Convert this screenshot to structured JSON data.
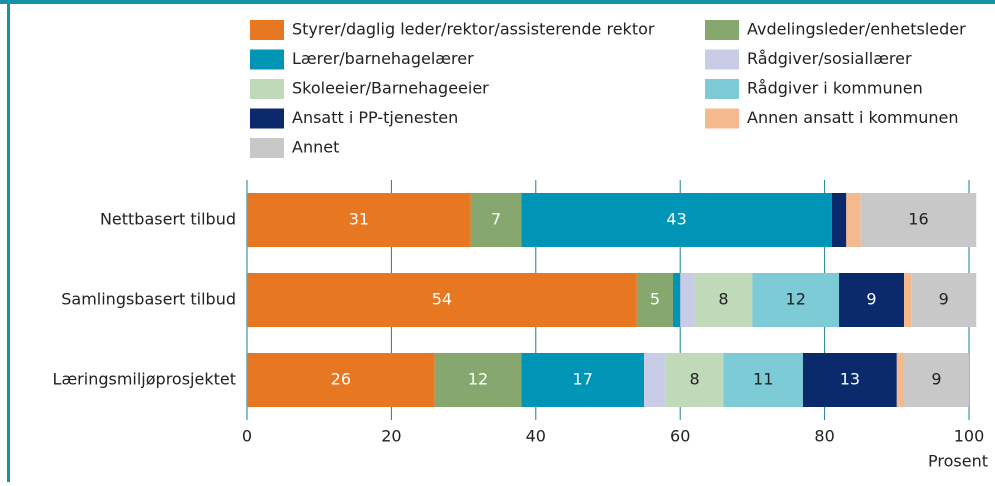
{
  "chart_data": {
    "type": "bar",
    "orientation": "horizontal",
    "stacked": true,
    "xlabel": "Prosent",
    "categories": [
      "Nettbasert tilbud",
      "Samlingsbasert tilbud",
      "Læringsmiljøprosjektet"
    ],
    "series": [
      {
        "name": "Styrer/daglig leder/rektor/assisterende rektor",
        "color": "#e87722",
        "values": [
          31,
          54,
          26
        ]
      },
      {
        "name": "Avdelingsleder/enhetsleder",
        "color": "#86a86e",
        "values": [
          7,
          5,
          12
        ]
      },
      {
        "name": "Lærer/barnehagelærer",
        "color": "#0095b6",
        "values": [
          43,
          1,
          17
        ]
      },
      {
        "name": "Rådgiver/sosiallærer",
        "color": "#c9cce6",
        "values": [
          0,
          2,
          3
        ]
      },
      {
        "name": "Skoleeier/Barnehageeier",
        "color": "#c0d9b8",
        "values": [
          0,
          8,
          8
        ]
      },
      {
        "name": "Rådgiver i kommunen",
        "color": "#7ecbd8",
        "values": [
          0,
          12,
          11
        ]
      },
      {
        "name": "Ansatt i PP-tjenesten",
        "color": "#0a2a6b",
        "values": [
          2,
          9,
          13
        ]
      },
      {
        "name": "Annen ansatt i kommunen",
        "color": "#f5b98e",
        "values": [
          2,
          1,
          1
        ]
      },
      {
        "name": "Annet",
        "color": "#c8c8c8",
        "values": [
          16,
          9,
          9
        ]
      }
    ],
    "xlim": [
      0,
      100
    ],
    "xticks": [
      0,
      20,
      40,
      60,
      80,
      100
    ],
    "grid": true
  }
}
